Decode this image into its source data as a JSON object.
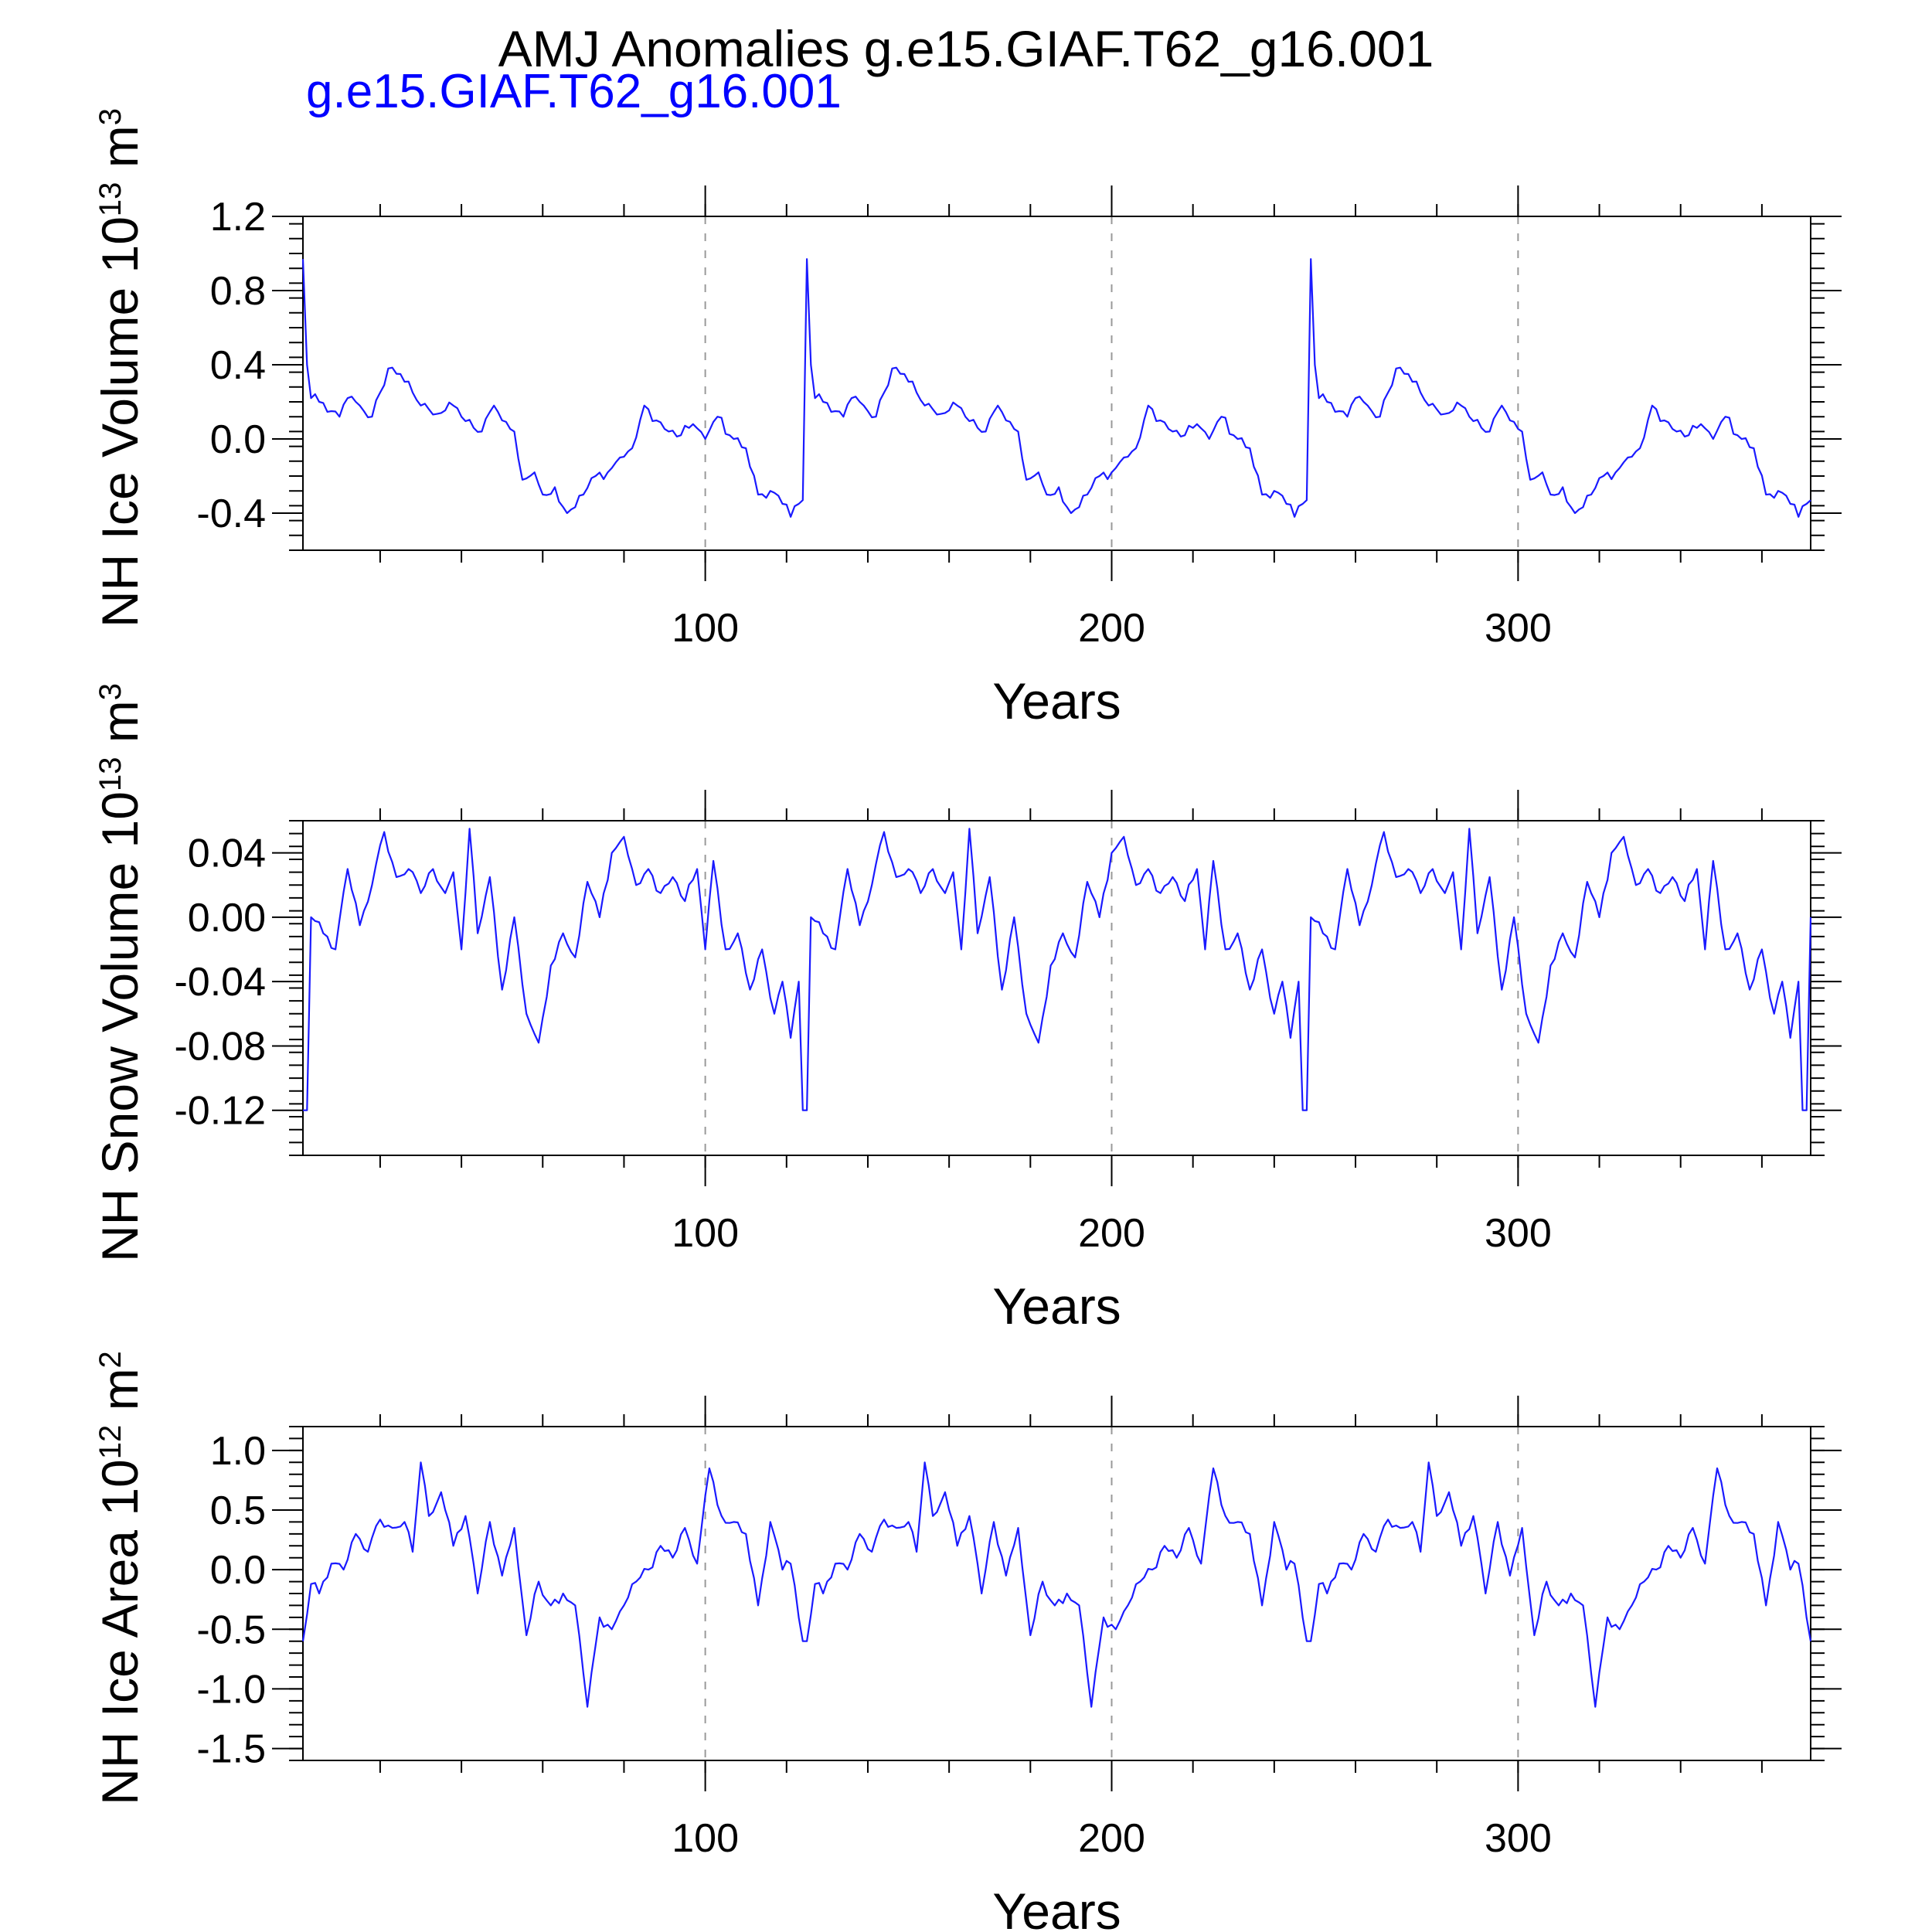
{
  "title": "AMJ Anomalies g.e15.GIAF.T62_g16.001",
  "subtitle": "g.e15.GIAF.T62_g16.001",
  "colors": {
    "series": "#1a1aff",
    "axis": "#000000",
    "grid": "#999999",
    "subtitle": "#0000ff"
  },
  "chart_data": [
    {
      "type": "line",
      "ylabel": {
        "main": "NH Ice Volume 10",
        "sup": "13",
        "unit": " m",
        "unit_sup": "3"
      },
      "xlabel": "Years",
      "xlim": [
        1,
        372
      ],
      "ylim": [
        -0.6,
        1.2
      ],
      "yticks": [
        -0.4,
        0.0,
        0.4,
        0.8,
        1.2
      ],
      "ytick_labels": [
        "-0.4",
        "0.0",
        "0.4",
        "0.8",
        "1.2"
      ],
      "xticks": [
        100,
        200,
        300
      ],
      "xtick_labels": [
        "100",
        "200",
        "300"
      ],
      "grid": "vertical dashed at x ticks",
      "series": [
        {
          "name": "g.e15.GIAF.T62_g16.001",
          "cycle_start": 1,
          "cycle_length": 124,
          "cycle_keypoints_x": [
            1,
            2,
            3,
            5,
            8,
            10,
            12,
            14,
            16,
            18,
            20,
            22,
            25,
            28,
            30,
            32,
            35,
            38,
            40,
            43,
            45,
            48,
            50,
            53,
            55,
            58,
            60,
            63,
            66,
            70,
            73,
            76,
            79,
            82,
            85,
            88,
            91,
            94,
            97,
            100,
            103,
            106,
            110,
            113,
            116,
            119,
            121,
            123,
            124
          ],
          "cycle_keypoints_y": [
            0.97,
            0.4,
            0.22,
            0.2,
            0.15,
            0.12,
            0.22,
            0.2,
            0.15,
            0.12,
            0.25,
            0.38,
            0.35,
            0.25,
            0.18,
            0.16,
            0.14,
            0.18,
            0.12,
            0.06,
            0.04,
            0.18,
            0.1,
            0.04,
            -0.22,
            -0.18,
            -0.3,
            -0.26,
            -0.4,
            -0.3,
            -0.2,
            -0.18,
            -0.1,
            -0.05,
            0.18,
            0.1,
            0.04,
            0.02,
            0.08,
            0.0,
            0.12,
            0.02,
            -0.05,
            -0.3,
            -0.28,
            -0.35,
            -0.42,
            -0.35,
            -0.33
          ]
        }
      ]
    },
    {
      "type": "line",
      "ylabel": {
        "main": "NH Snow Volume 10",
        "sup": "13",
        "unit": " m",
        "unit_sup": "3"
      },
      "xlabel": "Years",
      "xlim": [
        1,
        372
      ],
      "ylim": [
        -0.148,
        0.06
      ],
      "yticks": [
        -0.12,
        -0.08,
        -0.04,
        0.0,
        0.04
      ],
      "ytick_labels": [
        "-0.12",
        "-0.08",
        "-0.04",
        "0.00",
        "0.04"
      ],
      "xticks": [
        100,
        200,
        300
      ],
      "xtick_labels": [
        "100",
        "200",
        "300"
      ],
      "grid": "vertical dashed at x ticks",
      "series": [
        {
          "name": "g.e15.GIAF.T62_g16.001",
          "cycle_start": 2,
          "cycle_length": 123,
          "cycle_keypoints_x": [
            2,
            3,
            6,
            9,
            12,
            15,
            18,
            21,
            24,
            27,
            30,
            33,
            36,
            38,
            40,
            42,
            44,
            47,
            50,
            53,
            56,
            59,
            62,
            65,
            68,
            71,
            74,
            77,
            80,
            83,
            86,
            89,
            92,
            95,
            98,
            100,
            102,
            105,
            108,
            111,
            114,
            117,
            119,
            121,
            123,
            124
          ],
          "cycle_keypoints_y": [
            -0.12,
            0.0,
            -0.01,
            -0.02,
            0.03,
            -0.005,
            0.02,
            0.053,
            0.025,
            0.03,
            0.015,
            0.03,
            0.015,
            0.028,
            -0.02,
            0.055,
            -0.01,
            0.025,
            -0.045,
            0.0,
            -0.06,
            -0.078,
            -0.03,
            -0.01,
            -0.025,
            0.022,
            0.0,
            0.04,
            0.05,
            0.02,
            0.03,
            0.015,
            0.025,
            0.01,
            0.03,
            -0.02,
            0.035,
            -0.02,
            -0.01,
            -0.045,
            -0.02,
            -0.06,
            -0.04,
            -0.075,
            -0.04,
            -0.12
          ]
        }
      ]
    },
    {
      "type": "line",
      "ylabel": {
        "main": "NH Ice Area 10",
        "sup": "12",
        "unit": " m",
        "unit_sup": "2"
      },
      "xlabel": "Years",
      "xlim": [
        1,
        372
      ],
      "ylim": [
        -1.6,
        1.2
      ],
      "yticks": [
        -1.5,
        -1.0,
        -0.5,
        0.0,
        0.5,
        1.0
      ],
      "ytick_labels": [
        "-1.5",
        "-1.0",
        "-0.5",
        "0.0",
        "0.5",
        "1.0"
      ],
      "xticks": [
        100,
        200,
        300
      ],
      "xtick_labels": [
        "100",
        "200",
        "300"
      ],
      "grid": "vertical dashed at x ticks",
      "series": [
        {
          "name": "g.e15.GIAF.T62_g16.001",
          "cycle_start": 1,
          "cycle_length": 124,
          "cycle_keypoints_x": [
            1,
            3,
            5,
            8,
            11,
            14,
            17,
            20,
            23,
            26,
            28,
            30,
            32,
            35,
            38,
            41,
            44,
            47,
            50,
            53,
            56,
            59,
            62,
            65,
            68,
            71,
            74,
            77,
            80,
            83,
            86,
            89,
            92,
            95,
            98,
            101,
            104,
            107,
            110,
            113,
            116,
            119,
            121,
            124
          ],
          "cycle_keypoints_y": [
            -0.6,
            -0.12,
            -0.2,
            0.05,
            0.0,
            0.3,
            0.15,
            0.42,
            0.35,
            0.4,
            0.15,
            0.9,
            0.45,
            0.65,
            0.2,
            0.45,
            -0.2,
            0.4,
            -0.05,
            0.35,
            -0.55,
            -0.1,
            -0.3,
            -0.2,
            -0.3,
            -1.15,
            -0.4,
            -0.5,
            -0.3,
            -0.1,
            0.0,
            0.2,
            0.1,
            0.35,
            0.05,
            0.85,
            0.45,
            0.4,
            0.3,
            -0.3,
            0.4,
            0.0,
            0.05,
            -0.6
          ]
        }
      ]
    }
  ]
}
